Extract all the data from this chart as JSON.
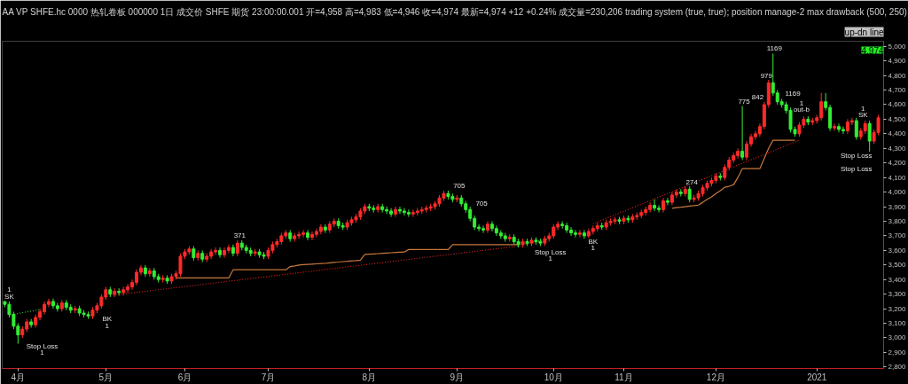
{
  "chart_data": {
    "type": "candlestick",
    "title": "AA  VP  SHFE.hc 0000  热轧卷板 000000  1日  成交价  SHFE  期货  23:00:00.001  开=4,958  高=4,983  低=4,946  收=4,974  最新=4,974  +12  +0.24%  成交量=230,206  trading system (true,  true); position manage-2 max drawback (500,  250)",
    "subtitle": "up-dn line",
    "categories": [
      null,
      null,
      null,
      "4月",
      null,
      null,
      null,
      null,
      null,
      null,
      null,
      null,
      null,
      null,
      null,
      null,
      null,
      null,
      null,
      null,
      null,
      null,
      null,
      "5月",
      null,
      null,
      null,
      null,
      null,
      null,
      null,
      null,
      null,
      null,
      null,
      null,
      null,
      null,
      null,
      null,
      null,
      "6月",
      null,
      null,
      null,
      null,
      null,
      null,
      null,
      null,
      null,
      null,
      null,
      null,
      null,
      null,
      null,
      null,
      null,
      null,
      "7月",
      null,
      null,
      null,
      null,
      null,
      null,
      null,
      null,
      null,
      null,
      null,
      null,
      null,
      null,
      null,
      null,
      null,
      null,
      null,
      null,
      null,
      null,
      "8月",
      null,
      null,
      null,
      null,
      null,
      null,
      null,
      null,
      null,
      null,
      null,
      null,
      null,
      null,
      null,
      null,
      null,
      null,
      null,
      "9月",
      null,
      null,
      null,
      null,
      null,
      null,
      null,
      null,
      null,
      null,
      null,
      null,
      null,
      null,
      null,
      null,
      null,
      null,
      null,
      null,
      null,
      "10月",
      null,
      null,
      null,
      null,
      null,
      null,
      null,
      null,
      null,
      null,
      null,
      null,
      null,
      null,
      null,
      "11月",
      null,
      null,
      null,
      null,
      null,
      null,
      null,
      null,
      null,
      null,
      null,
      null,
      null,
      null,
      null,
      null,
      null,
      null,
      null,
      null,
      "12月",
      null,
      null,
      null,
      null,
      null,
      null,
      null,
      null,
      null,
      null,
      null,
      null,
      null,
      null,
      null,
      null,
      null,
      null,
      null,
      null,
      null,
      null,
      "2021",
      null,
      null,
      null,
      null,
      null,
      null,
      null,
      null,
      null,
      null,
      null,
      null,
      null,
      null
    ],
    "ohlc": [
      [
        3250,
        3270,
        3210,
        3230
      ],
      [
        3230,
        3250,
        3140,
        3160
      ],
      [
        3160,
        3180,
        3060,
        3080
      ],
      [
        3080,
        3100,
        2960,
        3020
      ],
      [
        3020,
        3080,
        3000,
        3060
      ],
      [
        3060,
        3130,
        3040,
        3110
      ],
      [
        3110,
        3130,
        3070,
        3090
      ],
      [
        3090,
        3160,
        3070,
        3140
      ],
      [
        3140,
        3200,
        3120,
        3180
      ],
      [
        3180,
        3250,
        3160,
        3230
      ],
      [
        3230,
        3270,
        3210,
        3250
      ],
      [
        3250,
        3270,
        3200,
        3220
      ],
      [
        3220,
        3240,
        3180,
        3200
      ],
      [
        3200,
        3260,
        3180,
        3240
      ],
      [
        3240,
        3260,
        3190,
        3210
      ],
      [
        3210,
        3230,
        3170,
        3190
      ],
      [
        3190,
        3220,
        3170,
        3200
      ],
      [
        3200,
        3220,
        3150,
        3170
      ],
      [
        3170,
        3190,
        3140,
        3160
      ],
      [
        3160,
        3180,
        3130,
        3150
      ],
      [
        3150,
        3210,
        3130,
        3190
      ],
      [
        3190,
        3240,
        3170,
        3220
      ],
      [
        3220,
        3300,
        3200,
        3280
      ],
      [
        3280,
        3350,
        3260,
        3330
      ],
      [
        3330,
        3350,
        3280,
        3300
      ],
      [
        3300,
        3340,
        3280,
        3320
      ],
      [
        3320,
        3340,
        3290,
        3310
      ],
      [
        3310,
        3350,
        3290,
        3330
      ],
      [
        3330,
        3370,
        3310,
        3350
      ],
      [
        3350,
        3400,
        3330,
        3380
      ],
      [
        3380,
        3470,
        3360,
        3450
      ],
      [
        3450,
        3500,
        3430,
        3480
      ],
      [
        3480,
        3500,
        3420,
        3440
      ],
      [
        3440,
        3480,
        3420,
        3460
      ],
      [
        3460,
        3480,
        3400,
        3420
      ],
      [
        3420,
        3440,
        3380,
        3400
      ],
      [
        3400,
        3430,
        3380,
        3410
      ],
      [
        3410,
        3430,
        3370,
        3390
      ],
      [
        3390,
        3440,
        3370,
        3420
      ],
      [
        3420,
        3460,
        3400,
        3440
      ],
      [
        3440,
        3580,
        3420,
        3560
      ],
      [
        3560,
        3610,
        3540,
        3590
      ],
      [
        3590,
        3630,
        3570,
        3610
      ],
      [
        3610,
        3630,
        3530,
        3550
      ],
      [
        3550,
        3600,
        3530,
        3580
      ],
      [
        3580,
        3600,
        3520,
        3540
      ],
      [
        3540,
        3580,
        3520,
        3560
      ],
      [
        3560,
        3610,
        3540,
        3590
      ],
      [
        3590,
        3620,
        3570,
        3600
      ],
      [
        3600,
        3620,
        3550,
        3570
      ],
      [
        3570,
        3620,
        3550,
        3600
      ],
      [
        3600,
        3640,
        3580,
        3620
      ],
      [
        3620,
        3640,
        3560,
        3580
      ],
      [
        3580,
        3670,
        3560,
        3650
      ],
      [
        3650,
        3670,
        3600,
        3620
      ],
      [
        3620,
        3640,
        3580,
        3600
      ],
      [
        3600,
        3620,
        3560,
        3580
      ],
      [
        3580,
        3610,
        3560,
        3590
      ],
      [
        3590,
        3610,
        3550,
        3570
      ],
      [
        3570,
        3590,
        3540,
        3560
      ],
      [
        3560,
        3620,
        3540,
        3600
      ],
      [
        3600,
        3660,
        3580,
        3640
      ],
      [
        3640,
        3680,
        3620,
        3660
      ],
      [
        3660,
        3720,
        3640,
        3700
      ],
      [
        3700,
        3740,
        3680,
        3720
      ],
      [
        3720,
        3740,
        3660,
        3680
      ],
      [
        3680,
        3720,
        3660,
        3700
      ],
      [
        3700,
        3730,
        3680,
        3710
      ],
      [
        3710,
        3740,
        3690,
        3720
      ],
      [
        3720,
        3740,
        3670,
        3690
      ],
      [
        3690,
        3730,
        3670,
        3710
      ],
      [
        3710,
        3750,
        3690,
        3730
      ],
      [
        3730,
        3780,
        3710,
        3760
      ],
      [
        3760,
        3780,
        3720,
        3740
      ],
      [
        3740,
        3800,
        3720,
        3780
      ],
      [
        3780,
        3820,
        3760,
        3800
      ],
      [
        3800,
        3820,
        3750,
        3770
      ],
      [
        3770,
        3790,
        3740,
        3760
      ],
      [
        3760,
        3810,
        3740,
        3790
      ],
      [
        3790,
        3830,
        3770,
        3810
      ],
      [
        3810,
        3850,
        3790,
        3830
      ],
      [
        3830,
        3890,
        3810,
        3870
      ],
      [
        3870,
        3920,
        3850,
        3900
      ],
      [
        3900,
        3920,
        3870,
        3890
      ],
      [
        3890,
        3910,
        3860,
        3880
      ],
      [
        3880,
        3920,
        3860,
        3900
      ],
      [
        3900,
        3920,
        3860,
        3880
      ],
      [
        3880,
        3900,
        3850,
        3870
      ],
      [
        3870,
        3890,
        3830,
        3850
      ],
      [
        3850,
        3900,
        3830,
        3880
      ],
      [
        3880,
        3900,
        3850,
        3870
      ],
      [
        3870,
        3890,
        3840,
        3860
      ],
      [
        3860,
        3880,
        3830,
        3850
      ],
      [
        3850,
        3880,
        3830,
        3860
      ],
      [
        3860,
        3890,
        3840,
        3870
      ],
      [
        3870,
        3900,
        3850,
        3880
      ],
      [
        3880,
        3910,
        3860,
        3890
      ],
      [
        3890,
        3920,
        3870,
        3900
      ],
      [
        3900,
        3940,
        3880,
        3920
      ],
      [
        3920,
        3980,
        3900,
        3960
      ],
      [
        3960,
        4010,
        3940,
        3990
      ],
      [
        3990,
        4010,
        3950,
        3970
      ],
      [
        3970,
        3990,
        3930,
        3950
      ],
      [
        3950,
        3980,
        3930,
        3960
      ],
      [
        3960,
        3980,
        3900,
        3920
      ],
      [
        3920,
        3940,
        3860,
        3880
      ],
      [
        3880,
        3900,
        3800,
        3820
      ],
      [
        3820,
        3840,
        3740,
        3760
      ],
      [
        3760,
        3780,
        3730,
        3750
      ],
      [
        3750,
        3770,
        3720,
        3740
      ],
      [
        3740,
        3800,
        3720,
        3780
      ],
      [
        3780,
        3800,
        3730,
        3750
      ],
      [
        3750,
        3770,
        3700,
        3720
      ],
      [
        3720,
        3740,
        3680,
        3700
      ],
      [
        3700,
        3720,
        3660,
        3680
      ],
      [
        3680,
        3710,
        3660,
        3690
      ],
      [
        3690,
        3710,
        3640,
        3660
      ],
      [
        3660,
        3680,
        3620,
        3640
      ],
      [
        3640,
        3680,
        3620,
        3660
      ],
      [
        3660,
        3680,
        3630,
        3650
      ],
      [
        3650,
        3690,
        3630,
        3670
      ],
      [
        3670,
        3690,
        3640,
        3660
      ],
      [
        3660,
        3680,
        3630,
        3650
      ],
      [
        3650,
        3700,
        3630,
        3680
      ],
      [
        3680,
        3720,
        3660,
        3700
      ],
      [
        3700,
        3780,
        3680,
        3760
      ],
      [
        3760,
        3800,
        3740,
        3780
      ],
      [
        3780,
        3800,
        3750,
        3770
      ],
      [
        3770,
        3790,
        3720,
        3740
      ],
      [
        3740,
        3760,
        3700,
        3720
      ],
      [
        3720,
        3740,
        3690,
        3710
      ],
      [
        3710,
        3740,
        3690,
        3720
      ],
      [
        3720,
        3740,
        3680,
        3700
      ],
      [
        3700,
        3750,
        3680,
        3730
      ],
      [
        3730,
        3770,
        3710,
        3750
      ],
      [
        3750,
        3790,
        3730,
        3770
      ],
      [
        3770,
        3790,
        3740,
        3760
      ],
      [
        3760,
        3810,
        3740,
        3790
      ],
      [
        3790,
        3820,
        3770,
        3800
      ],
      [
        3800,
        3830,
        3780,
        3810
      ],
      [
        3810,
        3830,
        3780,
        3800
      ],
      [
        3800,
        3840,
        3780,
        3820
      ],
      [
        3820,
        3840,
        3790,
        3810
      ],
      [
        3810,
        3850,
        3790,
        3830
      ],
      [
        3830,
        3860,
        3810,
        3840
      ],
      [
        3840,
        3880,
        3820,
        3860
      ],
      [
        3860,
        3900,
        3840,
        3880
      ],
      [
        3880,
        3930,
        3860,
        3910
      ],
      [
        3910,
        3950,
        3870,
        3890
      ],
      [
        3890,
        3910,
        3860,
        3880
      ],
      [
        3880,
        3960,
        3860,
        3940
      ],
      [
        3940,
        3960,
        3910,
        3930
      ],
      [
        3930,
        4000,
        3910,
        3980
      ],
      [
        3980,
        4020,
        3960,
        4000
      ],
      [
        4000,
        4020,
        3970,
        3990
      ],
      [
        3990,
        4040,
        3970,
        4020
      ],
      [
        4020,
        4040,
        3930,
        3950
      ],
      [
        3950,
        3980,
        3930,
        3960
      ],
      [
        3960,
        4010,
        3940,
        3990
      ],
      [
        3990,
        4050,
        3970,
        4030
      ],
      [
        4030,
        4080,
        4010,
        4060
      ],
      [
        4060,
        4100,
        4040,
        4080
      ],
      [
        4080,
        4130,
        4060,
        4110
      ],
      [
        4110,
        4130,
        4080,
        4100
      ],
      [
        4100,
        4190,
        4080,
        4170
      ],
      [
        4170,
        4240,
        4150,
        4220
      ],
      [
        4220,
        4270,
        4200,
        4250
      ],
      [
        4250,
        4300,
        4230,
        4280
      ],
      [
        4280,
        4590,
        4220,
        4240
      ],
      [
        4240,
        4350,
        4220,
        4330
      ],
      [
        4330,
        4400,
        4310,
        4380
      ],
      [
        4380,
        4420,
        4360,
        4400
      ],
      [
        4400,
        4470,
        4380,
        4450
      ],
      [
        4450,
        4620,
        4430,
        4600
      ],
      [
        4600,
        4770,
        4580,
        4750
      ],
      [
        4750,
        4950,
        4660,
        4680
      ],
      [
        4680,
        4700,
        4600,
        4620
      ],
      [
        4620,
        4640,
        4580,
        4600
      ],
      [
        4600,
        4620,
        4540,
        4560
      ],
      [
        4560,
        4580,
        4410,
        4430
      ],
      [
        4430,
        4450,
        4380,
        4400
      ],
      [
        4400,
        4480,
        4380,
        4460
      ],
      [
        4460,
        4520,
        4440,
        4500
      ],
      [
        4500,
        4520,
        4460,
        4480
      ],
      [
        4480,
        4510,
        4460,
        4490
      ],
      [
        4490,
        4530,
        4470,
        4510
      ],
      [
        4510,
        4680,
        4490,
        4620
      ],
      [
        4620,
        4680,
        4560,
        4580
      ],
      [
        4580,
        4600,
        4420,
        4440
      ],
      [
        4440,
        4470,
        4420,
        4450
      ],
      [
        4450,
        4470,
        4410,
        4430
      ],
      [
        4430,
        4450,
        4400,
        4420
      ],
      [
        4420,
        4500,
        4400,
        4480
      ],
      [
        4480,
        4510,
        4460,
        4490
      ],
      [
        4490,
        4510,
        4360,
        4380
      ],
      [
        4380,
        4440,
        4360,
        4420
      ],
      [
        4420,
        4490,
        4400,
        4470
      ],
      [
        4470,
        4490,
        4270,
        4350
      ],
      [
        4350,
        4430,
        4330,
        4410
      ],
      [
        4410,
        4530,
        4390,
        4510
      ]
    ],
    "series": [
      {
        "type": "line",
        "color": "#c8783c",
        "line_style": "solid",
        "values": [
          null,
          null,
          null,
          null,
          null,
          null,
          null,
          null,
          null,
          null,
          null,
          null,
          null,
          null,
          null,
          null,
          null,
          null,
          null,
          null,
          null,
          null,
          null,
          null,
          null,
          null,
          null,
          null,
          null,
          null,
          null,
          null,
          null,
          null,
          null,
          null,
          null,
          null,
          null,
          3411,
          3411,
          3411,
          3411,
          3411,
          3411,
          3411,
          3411,
          3411,
          3411,
          3411,
          3411,
          3411,
          3467,
          3467,
          3467,
          3467,
          3467,
          3467,
          3467,
          3467,
          3467,
          3467,
          3467,
          3467,
          3467,
          3489,
          3494,
          3500,
          3502,
          3504,
          3506,
          3508,
          3510,
          3511,
          3515,
          3518,
          3520,
          3523,
          3525,
          3528,
          3530,
          3533,
          3572,
          3574,
          3576,
          3578,
          3580,
          3582,
          3584,
          3586,
          3588,
          3589,
          3606,
          3606,
          3606,
          3606,
          3606,
          3606,
          3606,
          3606,
          3606,
          3606,
          3639,
          3639,
          3639,
          3639,
          3639,
          3639,
          3639,
          3639,
          3639,
          3639,
          3639,
          3639,
          3639,
          3639,
          3639,
          3639,
          null,
          null,
          null,
          null,
          null,
          null,
          null,
          null,
          null,
          null,
          null,
          null,
          null,
          null,
          null,
          null,
          null,
          null,
          null,
          null,
          null,
          null,
          null,
          null,
          null,
          null,
          null,
          null,
          null,
          null,
          null,
          null,
          null,
          null,
          3889,
          3893,
          3896,
          3900,
          3904,
          3907,
          3911,
          3930,
          3950,
          3967,
          3990,
          4010,
          4033,
          4040,
          4050,
          4100,
          4161,
          4161,
          4161,
          4161,
          4161,
          4230,
          4300,
          4356,
          4356,
          4356,
          4356,
          4356,
          4356,
          null,
          null,
          null,
          null,
          null,
          null,
          null,
          null,
          null,
          null,
          null,
          null,
          null,
          null,
          null,
          null,
          null,
          null,
          null
        ]
      },
      {
        "type": "line",
        "color": "#e02020",
        "line_style": "dotted",
        "values": [
          null,
          null,
          null,
          null,
          null,
          null,
          null,
          null,
          null,
          null,
          null,
          null,
          null,
          null,
          null,
          null,
          null,
          null,
          null,
          null,
          null,
          null,
          null,
          null,
          3290,
          3294,
          3297,
          3301,
          3305,
          3308,
          3312,
          3316,
          3319,
          3323,
          3327,
          3330,
          3334,
          3337,
          3341,
          3345,
          3348,
          3352,
          3356,
          3359,
          3363,
          3367,
          3370,
          3374,
          3378,
          3381,
          3385,
          3389,
          3392,
          3396,
          3400,
          3403,
          3407,
          3410,
          3414,
          3418,
          3421,
          3425,
          3429,
          3432,
          3436,
          3440,
          3443,
          3447,
          3451,
          3454,
          3458,
          3462,
          3465,
          3469,
          3473,
          3476,
          3480,
          3483,
          3487,
          3491,
          3494,
          3498,
          3502,
          3505,
          3509,
          3513,
          3516,
          3520,
          3524,
          3527,
          3531,
          3535,
          3538,
          3542,
          3546,
          3549,
          3553,
          3556,
          3560,
          3564,
          3567,
          3571,
          3575,
          3578,
          3582,
          3586,
          3589,
          3593,
          3597,
          3600,
          3604,
          3608,
          3611,
          3615,
          3619,
          3622,
          3626,
          3629,
          3633,
          null,
          null,
          null,
          null,
          null,
          null,
          null,
          null,
          null,
          null,
          null,
          null,
          null,
          null,
          null,
          3783,
          3795,
          3807,
          3820,
          3832,
          3844,
          3856,
          3868,
          3881,
          3893,
          3905,
          3917,
          3929,
          3941,
          3954,
          3966,
          3978,
          3990,
          4002,
          4015,
          4027,
          4039,
          4051,
          4063,
          4076,
          4088,
          4100,
          4112,
          4124,
          4136,
          4149,
          4161,
          4173,
          4185,
          4197,
          4210,
          4222,
          4234,
          4246,
          4258,
          4271,
          4283,
          4295,
          4307,
          4319,
          4332,
          4344,
          4356,
          null,
          null,
          null,
          null,
          null,
          null,
          null,
          null,
          null,
          null,
          null,
          null,
          null,
          null,
          null,
          null,
          null,
          null
        ]
      },
      {
        "type": "line",
        "color": "#30c030",
        "line_style": "dotted",
        "values": [
          null,
          3156,
          3161,
          3167,
          3172,
          3178,
          3183,
          3189,
          3194,
          null,
          null,
          null,
          null,
          null,
          null,
          null,
          null,
          null,
          null,
          null,
          null,
          null,
          null,
          null,
          null,
          null,
          null,
          null,
          null,
          null,
          null,
          null,
          null,
          null,
          null,
          null,
          null,
          null,
          null,
          null,
          null,
          null,
          null,
          null,
          null,
          null,
          null,
          null,
          null,
          null,
          null,
          null,
          null,
          null,
          null,
          null,
          null,
          null,
          null,
          null,
          null,
          null,
          null,
          null,
          null,
          null,
          null,
          null,
          null,
          null,
          null,
          null,
          null,
          null,
          null,
          null,
          null,
          null,
          null,
          null,
          null,
          null,
          null,
          null,
          null,
          null,
          null,
          null,
          null,
          null,
          null,
          null,
          null,
          null,
          null,
          null,
          null,
          null,
          null,
          null,
          null,
          null,
          null,
          null,
          null,
          null,
          null,
          null,
          null,
          null,
          null,
          null,
          null,
          null,
          null,
          null,
          null,
          null,
          3640,
          3647,
          3653,
          3660,
          3667,
          3673,
          3680,
          null,
          null,
          null,
          null,
          null,
          null,
          null,
          null,
          null,
          null,
          null,
          null,
          null,
          null,
          null,
          null,
          null,
          null,
          null,
          null,
          null,
          null,
          null,
          null,
          null,
          null,
          null,
          null,
          null,
          null,
          null,
          null,
          null,
          null,
          null,
          null,
          null,
          null,
          null,
          null,
          null,
          null,
          null,
          null,
          null,
          null,
          null,
          null,
          null,
          null,
          null,
          null,
          null,
          null,
          null,
          null,
          null,
          null,
          null,
          null,
          null,
          null,
          null,
          null,
          null,
          null,
          null,
          null,
          null,
          null,
          null,
          null,
          null,
          null,
          null
        ]
      }
    ],
    "ylim": [
      2790,
      5035
    ],
    "yticks": [
      {
        "value": 2800,
        "label": "2,800"
      },
      {
        "value": 2900,
        "label": "2,900"
      },
      {
        "value": 3000,
        "label": "3,000"
      },
      {
        "value": 3100,
        "label": "3,100"
      },
      {
        "value": 3200,
        "label": "3,200"
      },
      {
        "value": 3300,
        "label": "3,300"
      },
      {
        "value": 3400,
        "label": "3,400"
      },
      {
        "value": 3500,
        "label": "3,500"
      },
      {
        "value": 3600,
        "label": "3,600"
      },
      {
        "value": 3700,
        "label": "3,700"
      },
      {
        "value": 3800,
        "label": "3,800"
      },
      {
        "value": 3900,
        "label": "3,900"
      },
      {
        "value": 4000,
        "label": "4,000"
      },
      {
        "value": 4100,
        "label": "4,100"
      },
      {
        "value": 4200,
        "label": "4,200"
      },
      {
        "value": 4300,
        "label": "4,300"
      },
      {
        "value": 4400,
        "label": "4,400"
      },
      {
        "value": 4500,
        "label": "4,500"
      },
      {
        "value": 4600,
        "label": "4,600"
      },
      {
        "value": 4700,
        "label": "4,700"
      },
      {
        "value": 4800,
        "label": "4,800"
      },
      {
        "value": 4900,
        "label": "4,900"
      },
      {
        "value": 5000,
        "label": "5,000"
      }
    ],
    "grid": false,
    "annotations": [
      "4,974",
      "1",
      "SK",
      "Stop Loss",
      "1",
      "BK",
      "1",
      "371",
      "705",
      "705",
      "Stop Loss",
      "1",
      "BK",
      "1",
      "274",
      "775",
      "842",
      "979",
      "1169",
      "1169",
      "1",
      "out-b",
      "1",
      "SK",
      "Stop Loss",
      "Stop Loss"
    ]
  }
}
